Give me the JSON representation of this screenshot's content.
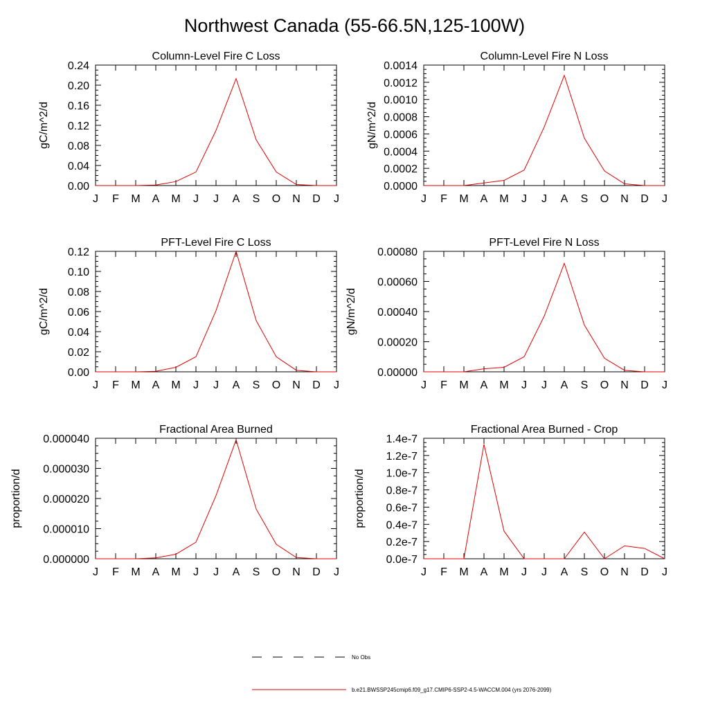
{
  "page": {
    "title": "Northwest Canada (55-66.5N,125-100W)"
  },
  "months": [
    "J",
    "F",
    "M",
    "A",
    "M",
    "J",
    "J",
    "A",
    "S",
    "O",
    "N",
    "D",
    "J"
  ],
  "colors": {
    "model": "#e00000",
    "axis": "#000000",
    "obs": "#000000"
  },
  "legend": {
    "obs_label": "No Obs",
    "model_label": "b.e21.BWSSP245cmip6.f09_g17.CMIP6-SSP2-4.5-WACCM.004 (yrs 2076-2099)"
  },
  "chart_data": [
    {
      "type": "line",
      "title": "Column-Level Fire C Loss",
      "ylabel": "gC/m^2/d",
      "ylim": [
        0,
        0.24
      ],
      "yticks": [
        "0.00",
        "0.04",
        "0.08",
        "0.12",
        "0.16",
        "0.20",
        "0.24"
      ],
      "x": [
        "J",
        "F",
        "M",
        "A",
        "M",
        "J",
        "J",
        "A",
        "S",
        "O",
        "N",
        "D",
        "J"
      ],
      "values": [
        0,
        0,
        0,
        0.001,
        0.008,
        0.027,
        0.11,
        0.213,
        0.091,
        0.027,
        0.002,
        0,
        0
      ]
    },
    {
      "type": "line",
      "title": "Column-Level Fire N Loss",
      "ylabel": "gN/m^2/d",
      "ylim": [
        0,
        0.0014
      ],
      "yticks": [
        "0.0000",
        "0.0002",
        "0.0004",
        "0.0006",
        "0.0008",
        "0.0010",
        "0.0012",
        "0.0014"
      ],
      "x": [
        "J",
        "F",
        "M",
        "A",
        "M",
        "J",
        "J",
        "A",
        "S",
        "O",
        "N",
        "D",
        "J"
      ],
      "values": [
        0,
        0,
        0,
        3e-05,
        6e-05,
        0.00018,
        0.00068,
        0.00128,
        0.00055,
        0.00017,
        2e-05,
        0,
        0
      ]
    },
    {
      "type": "line",
      "title": "PFT-Level Fire C Loss",
      "ylabel": "gC/m^2/d",
      "ylim": [
        0,
        0.12
      ],
      "yticks": [
        "0.00",
        "0.02",
        "0.04",
        "0.06",
        "0.08",
        "0.10",
        "0.12"
      ],
      "x": [
        "J",
        "F",
        "M",
        "A",
        "M",
        "J",
        "J",
        "A",
        "S",
        "O",
        "N",
        "D",
        "J"
      ],
      "values": [
        0,
        0,
        0,
        0.0005,
        0.0045,
        0.015,
        0.061,
        0.12,
        0.051,
        0.015,
        0.0015,
        0,
        0
      ]
    },
    {
      "type": "line",
      "title": "PFT-Level Fire N Loss",
      "ylabel": "gN/m^2/d",
      "ylim": [
        0,
        0.0008
      ],
      "yticks": [
        "0.00000",
        "0.00020",
        "0.00040",
        "0.00060",
        "0.00080"
      ],
      "x": [
        "J",
        "F",
        "M",
        "A",
        "M",
        "J",
        "J",
        "A",
        "S",
        "O",
        "N",
        "D",
        "J"
      ],
      "values": [
        0,
        0,
        0,
        2e-05,
        3e-05,
        0.0001,
        0.00037,
        0.00072,
        0.00031,
        9e-05,
        1e-05,
        0,
        0
      ]
    },
    {
      "type": "line",
      "title": "Fractional Area Burned",
      "ylabel": "proportion/d",
      "ylim": [
        0,
        4e-05
      ],
      "yticks": [
        "0.000000",
        "0.000010",
        "0.000020",
        "0.000030",
        "0.000040"
      ],
      "x": [
        "J",
        "F",
        "M",
        "A",
        "M",
        "J",
        "J",
        "A",
        "S",
        "O",
        "N",
        "D",
        "J"
      ],
      "values": [
        0,
        0,
        0,
        3e-07,
        1.5e-06,
        5.5e-06,
        2.1e-05,
        3.95e-05,
        1.65e-05,
        4.8e-06,
        4e-07,
        0,
        0
      ]
    },
    {
      "type": "line",
      "title": "Fractional Area Burned - Crop",
      "ylabel": "proportion/d",
      "ylim": [
        0,
        1.4e-07
      ],
      "yticks": [
        "0.0e-7",
        "0.2e-7",
        "0.4e-7",
        "0.6e-7",
        "0.8e-7",
        "1.0e-7",
        "1.2e-7",
        "1.4e-7"
      ],
      "x": [
        "J",
        "F",
        "M",
        "A",
        "M",
        "J",
        "J",
        "A",
        "S",
        "O",
        "N",
        "D",
        "J"
      ],
      "values": [
        0,
        0,
        0,
        1.33e-07,
        3.2e-08,
        0,
        0,
        0,
        3.1e-08,
        0,
        1.5e-08,
        1.2e-08,
        0
      ]
    }
  ]
}
